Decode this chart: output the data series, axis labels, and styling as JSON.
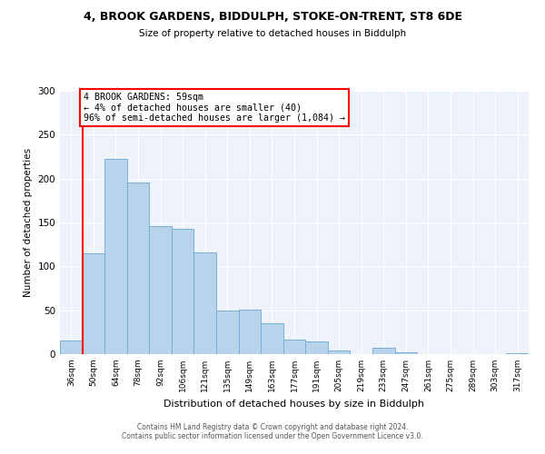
{
  "title": "4, BROOK GARDENS, BIDDULPH, STOKE-ON-TRENT, ST8 6DE",
  "subtitle": "Size of property relative to detached houses in Biddulph",
  "xlabel": "Distribution of detached houses by size in Biddulph",
  "ylabel": "Number of detached properties",
  "bar_labels": [
    "36sqm",
    "50sqm",
    "64sqm",
    "78sqm",
    "92sqm",
    "106sqm",
    "121sqm",
    "135sqm",
    "149sqm",
    "163sqm",
    "177sqm",
    "191sqm",
    "205sqm",
    "219sqm",
    "233sqm",
    "247sqm",
    "261sqm",
    "275sqm",
    "289sqm",
    "303sqm",
    "317sqm"
  ],
  "bar_values": [
    16,
    115,
    222,
    196,
    146,
    143,
    116,
    50,
    51,
    35,
    17,
    15,
    4,
    0,
    7,
    2,
    0,
    0,
    0,
    0,
    1
  ],
  "bar_color": "#b8d4ec",
  "bar_edge_color": "#7aaed4",
  "vline_color": "red",
  "annotation_text": "4 BROOK GARDENS: 59sqm\n← 4% of detached houses are smaller (40)\n96% of semi-detached houses are larger (1,084) →",
  "annotation_box_color": "white",
  "annotation_box_edge": "red",
  "ylim": [
    0,
    300
  ],
  "yticks": [
    0,
    50,
    100,
    150,
    200,
    250,
    300
  ],
  "footer_line1": "Contains HM Land Registry data © Crown copyright and database right 2024.",
  "footer_line2": "Contains public sector information licensed under the Open Government Licence v3.0.",
  "bg_color": "#eef2fb"
}
